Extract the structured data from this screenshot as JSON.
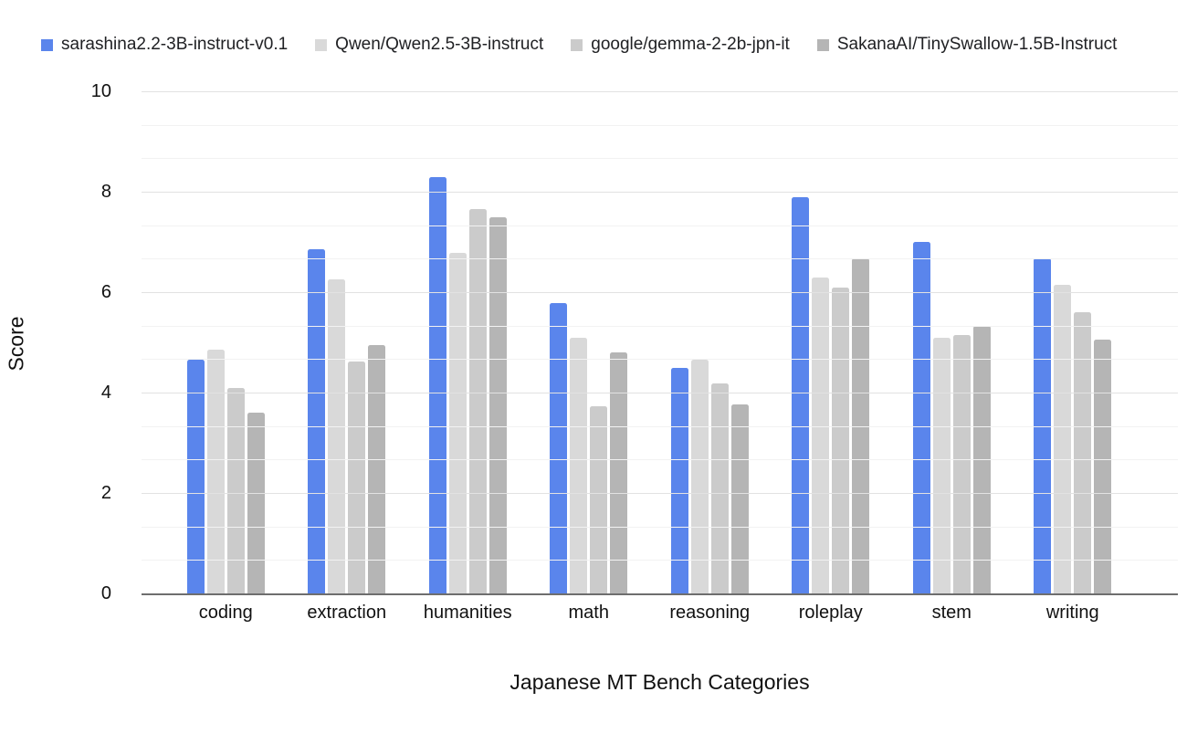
{
  "chart_data": {
    "type": "bar",
    "title": "",
    "xlabel": "Japanese MT Bench Categories",
    "ylabel": "Score",
    "ylim": [
      0,
      10
    ],
    "y_major_ticks": [
      0,
      2,
      4,
      6,
      8,
      10
    ],
    "y_minor_step": 0.6667,
    "grid": true,
    "legend_position": "top-left",
    "categories": [
      "coding",
      "extraction",
      "humanities",
      "math",
      "reasoning",
      "roleplay",
      "stem",
      "writing"
    ],
    "series": [
      {
        "name": "sarashina2.2-3B-instruct-v0.1",
        "color": "#5a85ec",
        "values": [
          4.65,
          6.85,
          8.3,
          5.78,
          4.5,
          7.9,
          7.0,
          6.67
        ]
      },
      {
        "name": "Qwen/Qwen2.5-3B-instruct",
        "color": "#d9d9d9",
        "values": [
          4.85,
          6.25,
          6.78,
          5.1,
          4.65,
          6.3,
          5.1,
          6.15
        ]
      },
      {
        "name": "google/gemma-2-2b-jpn-it",
        "color": "#cbcbcb",
        "values": [
          4.1,
          4.62,
          7.65,
          3.72,
          4.18,
          6.1,
          5.15,
          5.6
        ]
      },
      {
        "name": "SakanaAI/TinySwallow-1.5B-Instruct",
        "color": "#b5b5b5",
        "values": [
          3.6,
          4.95,
          7.5,
          4.8,
          3.77,
          6.67,
          5.32,
          5.05
        ]
      }
    ],
    "colors": {
      "baseline": "#6e6e6e",
      "major_grid": "#e2e2e2",
      "minor_grid": "#f2f2f2",
      "background": "#ffffff"
    }
  }
}
